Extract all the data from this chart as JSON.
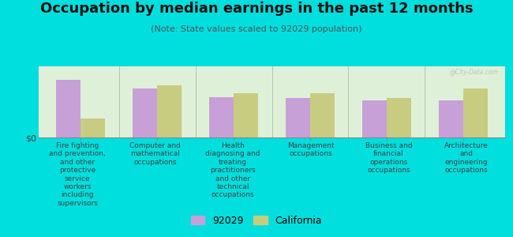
{
  "title": "Occupation by median earnings in the past 12 months",
  "subtitle": "(Note: State values scaled to 92029 population)",
  "categories": [
    "Fire fighting\nand prevention,\nand other\nprotective\nservice\nworkers\nincluding\nsupervisors",
    "Computer and\nmathematical\noccupations",
    "Health\ndiagnosing and\ntreating\npractitioners\nand other\ntechnical\noccupations",
    "Management\noccupations",
    "Business and\nfinancial\noperations\noccupations",
    "Architecture\nand\nengineering\noccupations"
  ],
  "values_92029": [
    0.85,
    0.72,
    0.6,
    0.58,
    0.55,
    0.55
  ],
  "values_california": [
    0.28,
    0.77,
    0.65,
    0.65,
    0.58,
    0.72
  ],
  "color_92029": "#c8a0d8",
  "color_california": "#c8cc80",
  "background_outer": "#00dede",
  "background_plot": "#dff0d8",
  "ylabel": "$0",
  "legend_92029": "92029",
  "legend_california": "California",
  "watermark": "@City-Data.com",
  "title_fontsize": 13,
  "subtitle_fontsize": 8,
  "label_fontsize": 6.5,
  "legend_fontsize": 9
}
